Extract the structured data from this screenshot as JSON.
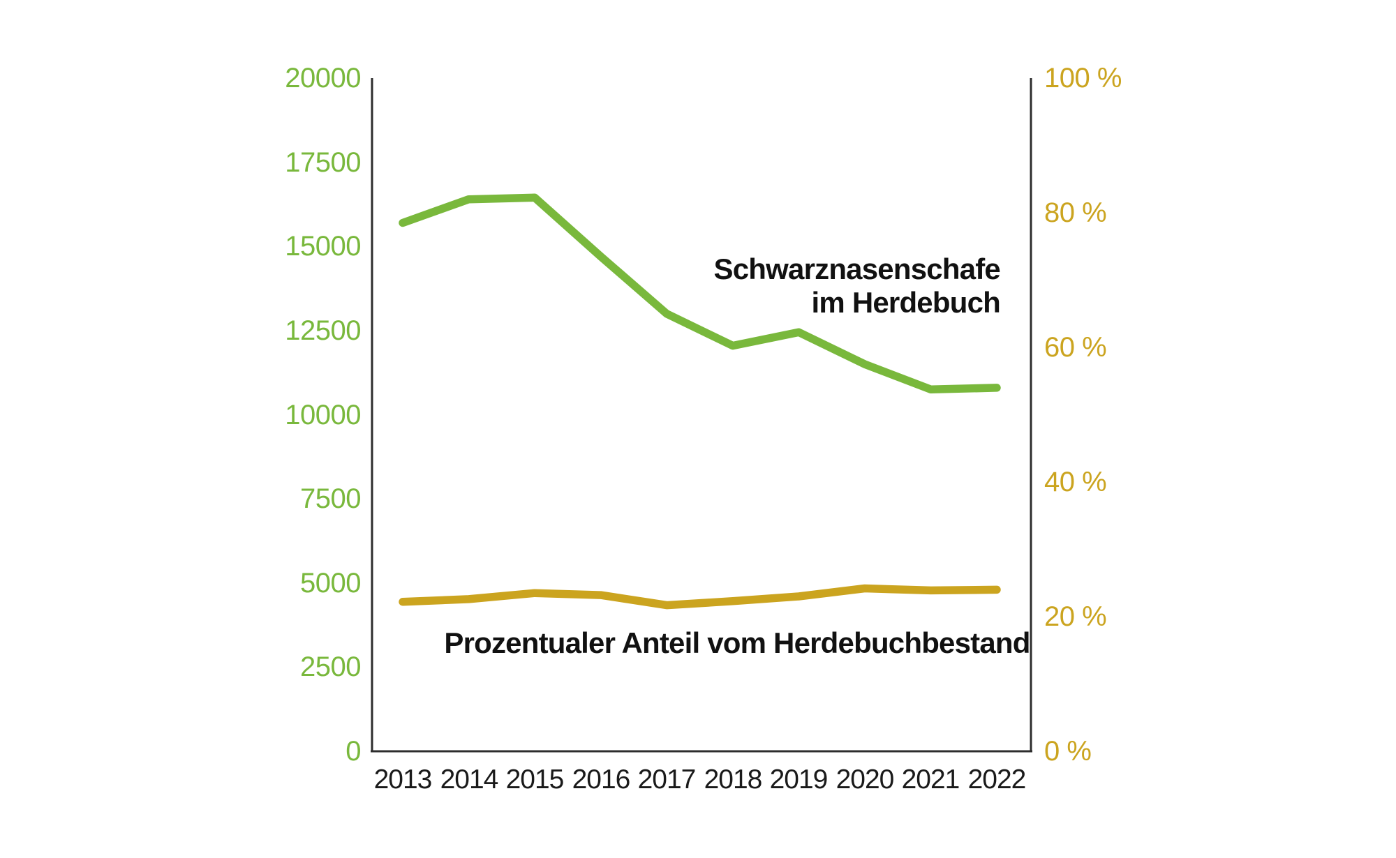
{
  "chart_data": {
    "type": "line",
    "x": [
      2013,
      2014,
      2015,
      2016,
      2017,
      2018,
      2019,
      2020,
      2021,
      2022
    ],
    "series": [
      {
        "name": "Schwarznasenschafe im Herdebuch",
        "axis": "left",
        "color": "#79B83C",
        "values": [
          15700,
          16400,
          16450,
          14700,
          13000,
          12050,
          12450,
          11500,
          10750,
          10800
        ]
      },
      {
        "name": "Prozentualer Anteil vom Herdebuchbestand",
        "axis": "right",
        "color": "#CBA41F",
        "values": [
          22.2,
          22.6,
          23.5,
          23.2,
          21.7,
          22.3,
          23.0,
          24.2,
          23.9,
          24.0
        ]
      }
    ],
    "left_axis": {
      "min": 0,
      "max": 20000,
      "ticks": [
        0,
        2500,
        5000,
        7500,
        10000,
        12500,
        15000,
        17500,
        20000
      ],
      "color": "#79B83C"
    },
    "right_axis": {
      "min": 0,
      "max": 100,
      "tick_labels": [
        "0 %",
        "20 %",
        "40 %",
        "60 %",
        "80 %",
        "100 %"
      ],
      "tick_values": [
        0,
        20,
        40,
        60,
        80,
        100
      ],
      "color": "#CBA41F"
    },
    "grid": false,
    "legend_position": "inline-annotations",
    "axis_line_color": "#2d2d2d"
  },
  "annotations": {
    "series1_line1": "Schwarznasenschafe",
    "series1_line2": "im Herdebuch",
    "series2": "Prozentualer Anteil vom Herdebuchbestand"
  }
}
